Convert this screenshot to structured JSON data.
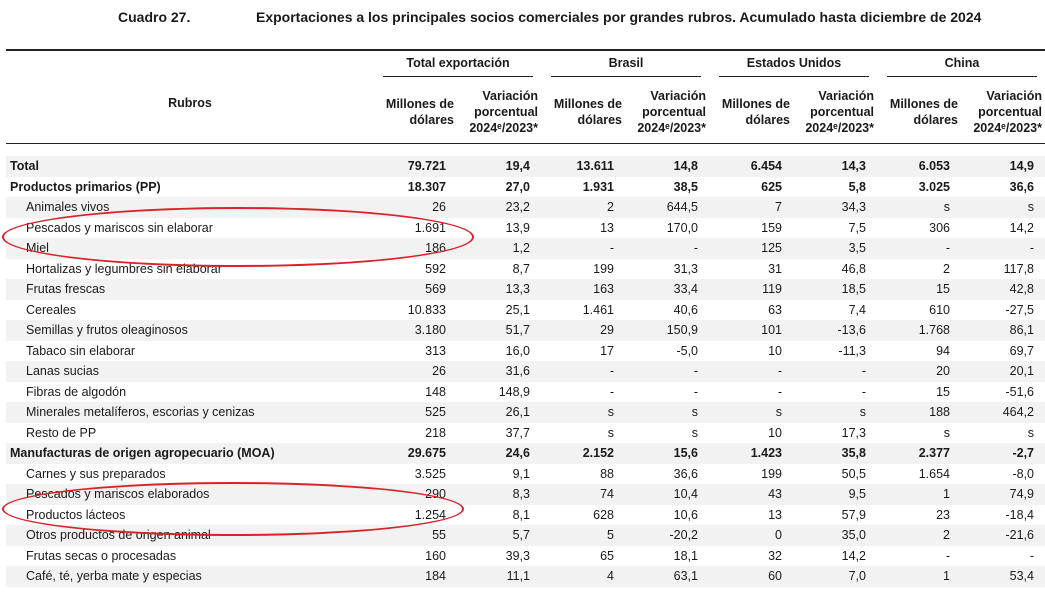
{
  "caption": {
    "number": "Cuadro 27.",
    "title": "Exportaciones a los principales socios comerciales por grandes rubros. Acumulado hasta diciembre de 2024"
  },
  "header": {
    "rubros": "Rubros",
    "groups": [
      "Total exportación",
      "Brasil",
      "Estados Unidos",
      "China"
    ],
    "sub_num": [
      "Millones de",
      "dólares"
    ],
    "sub_var": [
      "Variación",
      "porcentual",
      "2024ᵉ/2023*"
    ]
  },
  "rows": [
    {
      "label": "Total",
      "kind": "bold",
      "v": [
        "79.721",
        "19,4",
        "13.611",
        "14,8",
        "6.454",
        "14,3",
        "6.053",
        "14,9"
      ]
    },
    {
      "label": "Productos primarios (PP)",
      "kind": "bold",
      "v": [
        "18.307",
        "27,0",
        "1.931",
        "38,5",
        "625",
        "5,8",
        "3.025",
        "36,6"
      ]
    },
    {
      "label": "Animales vivos",
      "kind": "sub",
      "v": [
        "26",
        "23,2",
        "2",
        "644,5",
        "7",
        "34,3",
        "s",
        "s"
      ]
    },
    {
      "label": "Pescados y mariscos sin elaborar",
      "kind": "sub",
      "v": [
        "1.691",
        "13,9",
        "13",
        "170,0",
        "159",
        "7,5",
        "306",
        "14,2"
      ]
    },
    {
      "label": "Miel",
      "kind": "sub",
      "v": [
        "186",
        "1,2",
        "-",
        "-",
        "125",
        "3,5",
        "-",
        "-"
      ]
    },
    {
      "label": "Hortalizas y legumbres sin elaborar",
      "kind": "sub",
      "v": [
        "592",
        "8,7",
        "199",
        "31,3",
        "31",
        "46,8",
        "2",
        "117,8"
      ]
    },
    {
      "label": "Frutas frescas",
      "kind": "sub",
      "v": [
        "569",
        "13,3",
        "163",
        "33,4",
        "119",
        "18,5",
        "15",
        "42,8"
      ]
    },
    {
      "label": "Cereales",
      "kind": "sub",
      "v": [
        "10.833",
        "25,1",
        "1.461",
        "40,6",
        "63",
        "7,4",
        "610",
        "-27,5"
      ]
    },
    {
      "label": "Semillas y frutos oleaginosos",
      "kind": "sub",
      "v": [
        "3.180",
        "51,7",
        "29",
        "150,9",
        "101",
        "-13,6",
        "1.768",
        "86,1"
      ]
    },
    {
      "label": "Tabaco sin elaborar",
      "kind": "sub",
      "v": [
        "313",
        "16,0",
        "17",
        "-5,0",
        "10",
        "-11,3",
        "94",
        "69,7"
      ]
    },
    {
      "label": "Lanas sucias",
      "kind": "sub",
      "v": [
        "26",
        "31,6",
        "-",
        "-",
        "-",
        "-",
        "20",
        "20,1"
      ]
    },
    {
      "label": "Fibras de algodón",
      "kind": "sub",
      "v": [
        "148",
        "148,9",
        "-",
        "-",
        "-",
        "-",
        "15",
        "-51,6"
      ]
    },
    {
      "label": "Minerales metalíferos, escorias y cenizas",
      "kind": "sub",
      "v": [
        "525",
        "26,1",
        "s",
        "s",
        "s",
        "s",
        "188",
        "464,2"
      ]
    },
    {
      "label": "Resto de PP",
      "kind": "sub",
      "v": [
        "218",
        "37,7",
        "s",
        "s",
        "10",
        "17,3",
        "s",
        "s"
      ]
    },
    {
      "label": "Manufacturas de origen agropecuario (MOA)",
      "kind": "bold",
      "v": [
        "29.675",
        "24,6",
        "2.152",
        "15,6",
        "1.423",
        "35,8",
        "2.377",
        "-2,7"
      ]
    },
    {
      "label": "Carnes y sus preparados",
      "kind": "sub",
      "v": [
        "3.525",
        "9,1",
        "88",
        "36,6",
        "199",
        "50,5",
        "1.654",
        "-8,0"
      ]
    },
    {
      "label": "Pescados y mariscos elaborados",
      "kind": "sub",
      "v": [
        "290",
        "8,3",
        "74",
        "10,4",
        "43",
        "9,5",
        "1",
        "74,9"
      ]
    },
    {
      "label": "Productos lácteos",
      "kind": "sub",
      "v": [
        "1.254",
        "8,1",
        "628",
        "10,6",
        "13",
        "57,9",
        "23",
        "-18,4"
      ]
    },
    {
      "label": "Otros productos de origen animal",
      "kind": "sub",
      "v": [
        "55",
        "5,7",
        "5",
        "-20,2",
        "0",
        "35,0",
        "2",
        "-21,6"
      ]
    },
    {
      "label": "Frutas secas o procesadas",
      "kind": "sub",
      "v": [
        "160",
        "39,3",
        "65",
        "18,1",
        "32",
        "14,2",
        "-",
        "-"
      ]
    },
    {
      "label": "Café, té, yerba mate y especias",
      "kind": "sub",
      "v": [
        "184",
        "11,1",
        "4",
        "63,1",
        "60",
        "7,0",
        "1",
        "53,4"
      ]
    }
  ],
  "highlight_color": "#d8232a"
}
